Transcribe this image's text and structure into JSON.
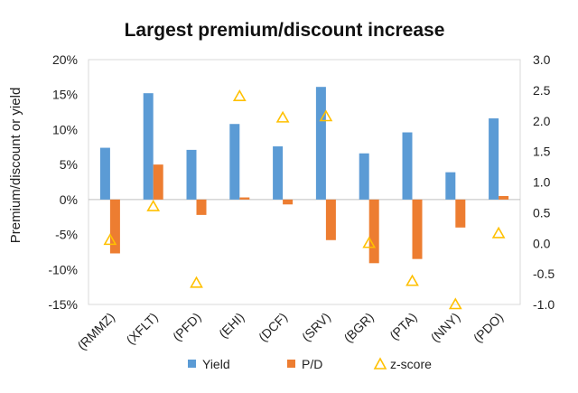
{
  "chart_data": {
    "type": "bar",
    "title": "Largest premium/discount increase",
    "ylabel": "Premium/discount or yield",
    "y2label": "",
    "categories": [
      "(RMMZ)",
      "(XFLT)",
      "(PFD)",
      "(EHI)",
      "(DCF)",
      "(SRV)",
      "(BGR)",
      "(PTA)",
      "(NNY)",
      "(PDO)"
    ],
    "ylim": [
      -15,
      20
    ],
    "yticks": [
      "-15%",
      "-10%",
      "-5%",
      "0%",
      "5%",
      "10%",
      "15%",
      "20%"
    ],
    "y2lim": [
      -1.0,
      3.0
    ],
    "y2ticks": [
      "-1.0",
      "-0.5",
      "0.0",
      "0.5",
      "1.0",
      "1.5",
      "2.0",
      "2.5",
      "3.0"
    ],
    "grid": false,
    "legend": "bottom",
    "series": [
      {
        "name": "Yield",
        "type": "bar",
        "axis": "left",
        "color": "#5B9BD5",
        "values": [
          7.4,
          15.2,
          7.1,
          10.8,
          7.6,
          16.1,
          6.6,
          9.6,
          3.9,
          11.6
        ]
      },
      {
        "name": "P/D",
        "type": "bar",
        "axis": "left",
        "color": "#ED7D31",
        "values": [
          -7.7,
          5.0,
          -2.2,
          0.3,
          -0.7,
          -5.8,
          -9.1,
          -8.5,
          -4.0,
          0.5
        ]
      },
      {
        "name": "z-score",
        "type": "scatter",
        "axis": "right",
        "color": "#FFC000",
        "marker": "triangle-open",
        "values": [
          0.05,
          0.6,
          -0.65,
          2.4,
          2.05,
          2.07,
          0.0,
          -0.62,
          -1.0,
          0.16
        ]
      }
    ]
  }
}
